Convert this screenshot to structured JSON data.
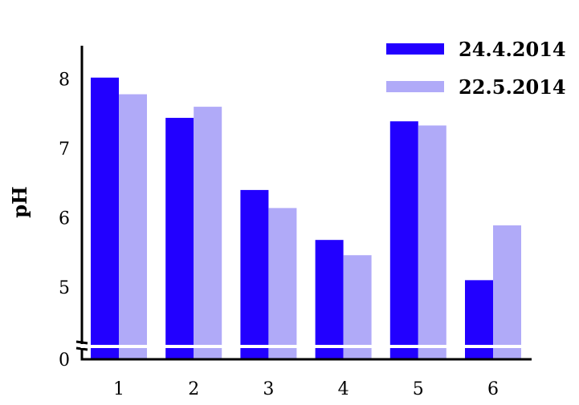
{
  "chart_data": {
    "type": "bar",
    "categories": [
      "1",
      "2",
      "3",
      "4",
      "5",
      "6"
    ],
    "series": [
      {
        "name": "24.4.2014",
        "color": "#2200ff",
        "values": [
          8.02,
          7.44,
          6.4,
          5.68,
          7.39,
          5.1
        ]
      },
      {
        "name": "22.5.2014",
        "color": "#b0aaf8",
        "values": [
          7.78,
          7.6,
          6.14,
          5.46,
          7.33,
          5.89
        ]
      }
    ],
    "ylabel": "pH",
    "xlabel": "",
    "yticks": [
      "0",
      "5",
      "6",
      "7",
      "8"
    ],
    "ylim": [
      4.5,
      8.5
    ],
    "axis_break": true,
    "legend_position": "top-right",
    "grid": false
  }
}
